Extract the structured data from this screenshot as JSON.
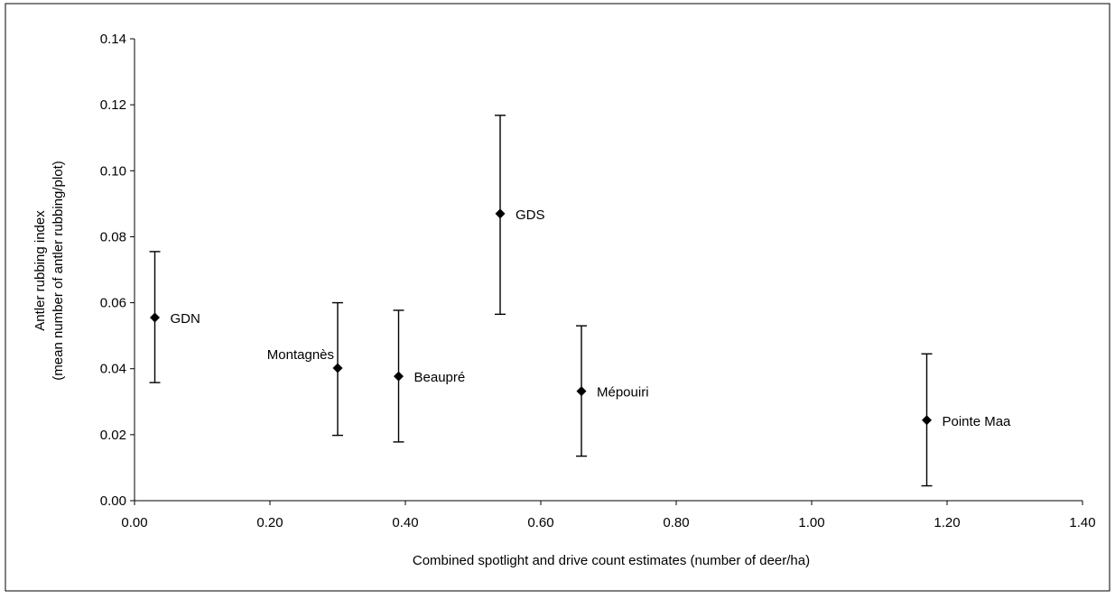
{
  "chart_data": {
    "type": "scatter",
    "title": "",
    "xlabel": "Combined spotlight and drive count estimates (number of deer/ha)",
    "ylabel_line1": "Antler rubbing index",
    "ylabel_line2": "(mean number of antler rubbing/plot)",
    "xlim": [
      0,
      1.4
    ],
    "ylim": [
      0,
      0.14
    ],
    "x_ticks": [
      "0.00",
      "0.20",
      "0.40",
      "0.60",
      "0.80",
      "1.00",
      "1.20",
      "1.40"
    ],
    "y_ticks": [
      "0.00",
      "0.02",
      "0.04",
      "0.06",
      "0.08",
      "0.10",
      "0.12",
      "0.14"
    ],
    "x_tick_values": [
      0,
      0.2,
      0.4,
      0.6,
      0.8,
      1.0,
      1.2,
      1.4
    ],
    "y_tick_values": [
      0,
      0.02,
      0.04,
      0.06,
      0.08,
      0.1,
      0.12,
      0.14
    ],
    "grid": false,
    "legend": "none",
    "marker": "diamond",
    "color": "#000000",
    "points": [
      {
        "label": "GDN",
        "x": 0.03,
        "y": 0.0555,
        "y_low": 0.0358,
        "y_high": 0.0755,
        "label_side": "right"
      },
      {
        "label": "Montagnès",
        "x": 0.3,
        "y": 0.0402,
        "y_low": 0.0198,
        "y_high": 0.06,
        "label_side": "left"
      },
      {
        "label": "Beaupré",
        "x": 0.39,
        "y": 0.0377,
        "y_low": 0.0178,
        "y_high": 0.0577,
        "label_side": "right"
      },
      {
        "label": "GDS",
        "x": 0.54,
        "y": 0.087,
        "y_low": 0.0565,
        "y_high": 0.1168,
        "label_side": "right"
      },
      {
        "label": "Mépouiri",
        "x": 0.66,
        "y": 0.0332,
        "y_low": 0.0135,
        "y_high": 0.053,
        "label_side": "right"
      },
      {
        "label": "Pointe Maa",
        "x": 1.17,
        "y": 0.0244,
        "y_low": 0.0045,
        "y_high": 0.0445,
        "label_side": "right"
      }
    ]
  }
}
